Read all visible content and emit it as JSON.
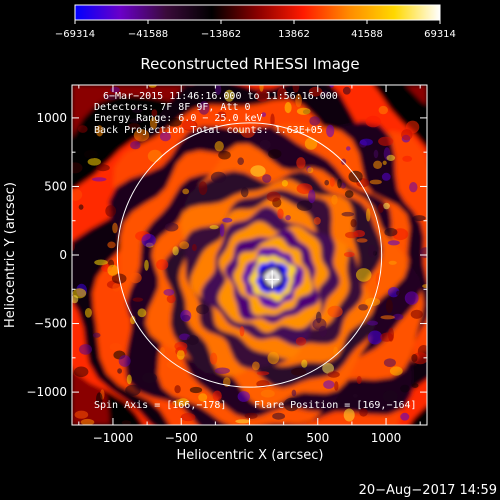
{
  "chart_data": {
    "type": "heatmap",
    "title": "Reconstructed RHESSI Image",
    "xlabel": "Heliocentric X (arcsec)",
    "ylabel": "Heliocentric Y (arcsec)",
    "xlim": [
      -1300,
      1300
    ],
    "ylim": [
      -1240,
      1240
    ],
    "x_ticks": [
      -1000,
      -500,
      0,
      500,
      1000
    ],
    "x_tick_labels": [
      "−1000",
      "−500",
      "0",
      "500",
      "1000"
    ],
    "y_ticks": [
      -1000,
      -500,
      0,
      500,
      1000
    ],
    "y_tick_labels": [
      "−1000",
      "−500",
      "0",
      "500",
      "1000"
    ],
    "colorbar": {
      "range": [
        -69314,
        69314
      ],
      "ticks": [
        -69314,
        -41588,
        -13862,
        13862,
        41588,
        69314
      ],
      "tick_labels": [
        "−69314",
        "−41588",
        "−13862",
        "13862",
        "41588",
        "69314"
      ],
      "colors": [
        "#0000ff",
        "#6a00c8",
        "#3a0a3a",
        "#000000",
        "#8a0000",
        "#ff1a00",
        "#ff8a00",
        "#ffd800",
        "#ffffff"
      ]
    },
    "info_lines": [
      "6−Mar−2015 11:46:16.000 to 11:56:16.000",
      "Detectors: 7F 8F 9F, Att 0",
      "Energy Range: 6.0 − 25.0 keV",
      "Back Projection    Total counts: 1.63E+05"
    ],
    "spin_axis_label": "Spin Axis = [166,−178]",
    "flare_position_label": "Flare Position = [169,−164]",
    "spin_axis": [
      166,
      -178
    ],
    "flare_position": [
      169,
      -164
    ],
    "solar_limb_radius_arcsec": 968,
    "rings": [
      {
        "r": 55,
        "v": 69314
      },
      {
        "r": 85,
        "v": -30000
      },
      {
        "r": 120,
        "v": -69314
      },
      {
        "r": 160,
        "v": 52000
      },
      {
        "r": 210,
        "v": -48000
      },
      {
        "r": 270,
        "v": 40000
      },
      {
        "r": 330,
        "v": -42000
      },
      {
        "r": 400,
        "v": 36000
      },
      {
        "r": 470,
        "v": -38000
      },
      {
        "r": 540,
        "v": 33000
      },
      {
        "r": 620,
        "v": -34000
      },
      {
        "r": 700,
        "v": 31000
      },
      {
        "r": 790,
        "v": -30000
      },
      {
        "r": 880,
        "v": 28000
      },
      {
        "r": 970,
        "v": -27000
      },
      {
        "r": 1070,
        "v": 26000
      },
      {
        "r": 1180,
        "v": -25000
      },
      {
        "r": 1300,
        "v": 24000
      },
      {
        "r": 1420,
        "v": -22000
      },
      {
        "r": 1550,
        "v": 20000
      },
      {
        "r": 1700,
        "v": -18000
      }
    ]
  },
  "footer": {
    "timestamp": "20−Aug−2017 14:59"
  }
}
